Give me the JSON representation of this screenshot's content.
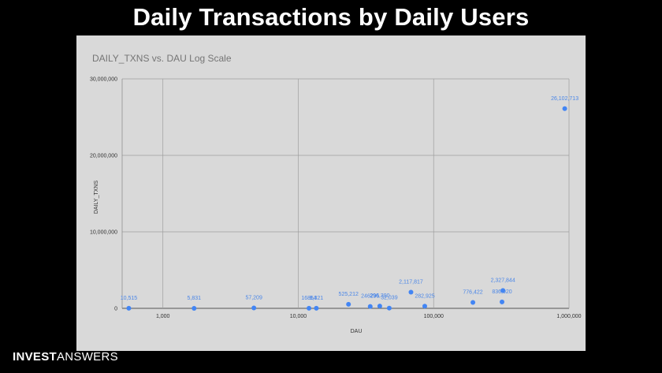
{
  "page": {
    "title": "Daily Transactions by Daily Users",
    "brand_bold": "INVEST",
    "brand_light": "ANSWERS"
  },
  "colors": {
    "background": "#000000",
    "panel": "#d9d9d9",
    "point": "#4285f4",
    "label": "#4a86e8",
    "grid": "#9e9e9e"
  },
  "chart_data": {
    "type": "scatter",
    "title": "DAILY_TXNS vs. DAU Log Scale",
    "xlabel": "DAU",
    "ylabel": "DAILY_TXNS",
    "x_scale": "log",
    "xlim": [
      500,
      1000000
    ],
    "ylim": [
      0,
      30000000
    ],
    "grid": true,
    "x_ticks": [
      {
        "value": 1000,
        "label": "1,000"
      },
      {
        "value": 10000,
        "label": "10,000"
      },
      {
        "value": 100000,
        "label": "100,000"
      },
      {
        "value": 1000000,
        "label": "1,000,000"
      }
    ],
    "y_ticks": [
      {
        "value": 0,
        "label": "0"
      },
      {
        "value": 10000000,
        "label": "10,000,000"
      },
      {
        "value": 20000000,
        "label": "20,000,000"
      },
      {
        "value": 30000000,
        "label": "30,000,000"
      }
    ],
    "points": [
      {
        "x": 560,
        "y": 10515,
        "label": "10,515"
      },
      {
        "x": 1700,
        "y": 5831,
        "label": "5,831"
      },
      {
        "x": 4700,
        "y": 57209,
        "label": "57,209"
      },
      {
        "x": 12000,
        "y": 16854,
        "label": "16854"
      },
      {
        "x": 13600,
        "y": 9321,
        "label": "9,321"
      },
      {
        "x": 23500,
        "y": 525212,
        "label": "525,212"
      },
      {
        "x": 34000,
        "y": 246296,
        "label": "246296"
      },
      {
        "x": 40000,
        "y": 296390,
        "label": "296,390"
      },
      {
        "x": 47000,
        "y": 32039,
        "label": "32,039"
      },
      {
        "x": 68000,
        "y": 2117817,
        "label": "2,117,817"
      },
      {
        "x": 86000,
        "y": 282925,
        "label": "282,925"
      },
      {
        "x": 195000,
        "y": 776422,
        "label": "776,422"
      },
      {
        "x": 320000,
        "y": 836920,
        "label": "836,920"
      },
      {
        "x": 325000,
        "y": 2327844,
        "label": "2,327,844"
      },
      {
        "x": 930000,
        "y": 26102713,
        "label": "26,102,713"
      }
    ]
  }
}
